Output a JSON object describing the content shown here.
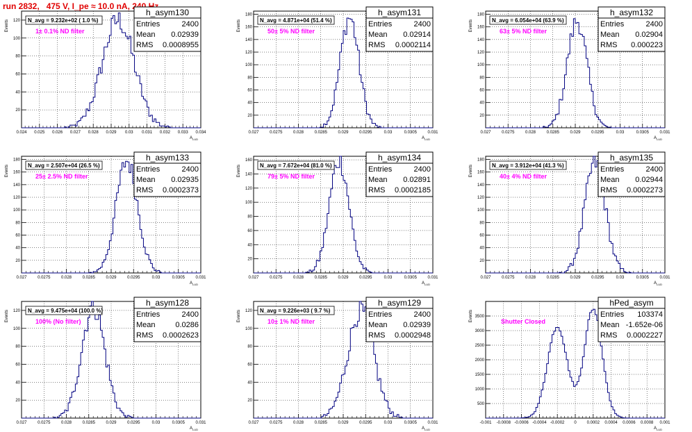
{
  "run_title": "run 2832,   475 V, I_pe ≈ 10.0 nA, 240 Hz",
  "stats_labels": {
    "entries": "Entries",
    "mean": "Mean",
    "rms": "RMS"
  },
  "colors": {
    "histogram": "#000080",
    "filter_text": "#ff00ff",
    "title_text": "#e00000",
    "grid": "#000000"
  },
  "chart_data": [
    {
      "type": "histogram",
      "name": "h_asym130",
      "entries": "2400",
      "mean": "0.02939",
      "rms": "0.0008955",
      "navg": "N_avg = 9.232e+02 ( 1.0 %)",
      "filter": "1± 0.1% ND filter",
      "xlabel": "A_LUD",
      "ylabel": "Events",
      "xlim": [
        0.024,
        0.034
      ],
      "ylim": [
        0,
        130
      ],
      "xticks": [
        0.024,
        0.025,
        0.026,
        0.027,
        0.028,
        0.029,
        0.03,
        0.031,
        0.032,
        0.033,
        0.034
      ],
      "xtick_labels": [
        "0.024",
        "0.025",
        "0.026",
        "0.027",
        "0.028",
        "0.029",
        "0.03",
        "0.031",
        "0.032",
        "0.033",
        "0.034"
      ],
      "yticks": [
        20,
        40,
        60,
        80,
        100,
        120
      ],
      "ytick_labels": [
        "20",
        "40",
        "60",
        "80",
        "100",
        "120"
      ],
      "grid": true,
      "mu": 0.02939,
      "sigma": 0.00089,
      "peak": 120,
      "nbins": 100
    },
    {
      "type": "histogram",
      "name": "h_asym131",
      "entries": "2400",
      "mean": "0.02914",
      "rms": "0.0002114",
      "navg": "N_avg = 4.871e+04 (51.4 %)",
      "filter": "50± 5% ND filter",
      "xlabel": "A_LUD",
      "ylabel": "Events",
      "xlim": [
        0.027,
        0.031
      ],
      "ylim": [
        0,
        185
      ],
      "xticks": [
        0.027,
        0.0275,
        0.028,
        0.0285,
        0.029,
        0.0295,
        0.03,
        0.0305,
        0.031
      ],
      "xtick_labels": [
        "0.027",
        "0.0275",
        "0.028",
        "0.0285",
        "0.029",
        "0.0295",
        "0.03",
        "0.0305",
        "0.031"
      ],
      "yticks": [
        20,
        40,
        60,
        80,
        100,
        120,
        140,
        160,
        180
      ],
      "ytick_labels": [
        "20",
        "40",
        "60",
        "80",
        "100",
        "120",
        "140",
        "160",
        "180"
      ],
      "grid": true,
      "mu": 0.02914,
      "sigma": 0.00021,
      "peak": 175,
      "nbins": 100
    },
    {
      "type": "histogram",
      "name": "h_asym132",
      "entries": "2400",
      "mean": "0.02904",
      "rms": "0.000223",
      "navg": "N_avg = 6.054e+04 (63.9 %)",
      "filter": "63± 5% ND filter",
      "xlabel": "A_LUD",
      "ylabel": "Events",
      "xlim": [
        0.027,
        0.031
      ],
      "ylim": [
        0,
        185
      ],
      "xticks": [
        0.027,
        0.0275,
        0.028,
        0.0285,
        0.029,
        0.0295,
        0.03,
        0.0305,
        0.031
      ],
      "xtick_labels": [
        "0.027",
        "0.0275",
        "0.028",
        "0.0285",
        "0.029",
        "0.0295",
        "0.03",
        "0.0305",
        "0.031"
      ],
      "yticks": [
        20,
        40,
        60,
        80,
        100,
        120,
        140,
        160,
        180
      ],
      "ytick_labels": [
        "20",
        "40",
        "60",
        "80",
        "100",
        "120",
        "140",
        "160",
        "180"
      ],
      "grid": true,
      "mu": 0.02904,
      "sigma": 0.00022,
      "peak": 170,
      "nbins": 100
    },
    {
      "type": "histogram",
      "name": "h_asym133",
      "entries": "2400",
      "mean": "0.02935",
      "rms": "0.0002373",
      "navg": "N_avg = 2.507e+04 (26.5 %)",
      "filter": "25± 2.5% ND filter",
      "xlabel": "A_LUD",
      "ylabel": "Events",
      "xlim": [
        0.027,
        0.031
      ],
      "ylim": [
        0,
        185
      ],
      "xticks": [
        0.027,
        0.0275,
        0.028,
        0.0285,
        0.029,
        0.0295,
        0.03,
        0.0305,
        0.031
      ],
      "xtick_labels": [
        "0.027",
        "0.0275",
        "0.028",
        "0.0285",
        "0.029",
        "0.0295",
        "0.03",
        "0.0305",
        "0.031"
      ],
      "yticks": [
        20,
        40,
        60,
        80,
        100,
        120,
        140,
        160,
        180
      ],
      "ytick_labels": [
        "20",
        "40",
        "60",
        "80",
        "100",
        "120",
        "140",
        "160",
        "180"
      ],
      "grid": true,
      "mu": 0.02935,
      "sigma": 0.00024,
      "peak": 178,
      "nbins": 100
    },
    {
      "type": "histogram",
      "name": "h_asym134",
      "entries": "2400",
      "mean": "0.02891",
      "rms": "0.0002185",
      "navg": "N_avg = 7.672e+04 (81.0 %)",
      "filter": "79± 5% ND filter",
      "xlabel": "A_LUD",
      "ylabel": "Events",
      "xlim": [
        0.027,
        0.031
      ],
      "ylim": [
        0,
        165
      ],
      "xticks": [
        0.027,
        0.0275,
        0.028,
        0.0285,
        0.029,
        0.0295,
        0.03,
        0.0305,
        0.031
      ],
      "xtick_labels": [
        "0.027",
        "0.0275",
        "0.028",
        "0.0285",
        "0.029",
        "0.0295",
        "0.03",
        "0.0305",
        "0.031"
      ],
      "yticks": [
        20,
        40,
        60,
        80,
        100,
        120,
        140,
        160
      ],
      "ytick_labels": [
        "20",
        "40",
        "60",
        "80",
        "100",
        "120",
        "140",
        "160"
      ],
      "grid": true,
      "mu": 0.02891,
      "sigma": 0.00022,
      "peak": 160,
      "nbins": 100
    },
    {
      "type": "histogram",
      "name": "h_asym135",
      "entries": "2400",
      "mean": "0.02944",
      "rms": "0.0002273",
      "navg": "N_avg = 3.912e+04 (41.3 %)",
      "filter": "40± 4% ND filter",
      "xlabel": "A_LUD",
      "ylabel": "Events",
      "xlim": [
        0.027,
        0.031
      ],
      "ylim": [
        0,
        185
      ],
      "xticks": [
        0.027,
        0.0275,
        0.028,
        0.0285,
        0.029,
        0.0295,
        0.03,
        0.0305,
        0.031
      ],
      "xtick_labels": [
        "0.027",
        "0.0275",
        "0.028",
        "0.0285",
        "0.029",
        "0.0295",
        "0.03",
        "0.0305",
        "0.031"
      ],
      "yticks": [
        20,
        40,
        60,
        80,
        100,
        120,
        140,
        160,
        180
      ],
      "ytick_labels": [
        "20",
        "40",
        "60",
        "80",
        "100",
        "120",
        "140",
        "160",
        "180"
      ],
      "grid": true,
      "mu": 0.02944,
      "sigma": 0.00023,
      "peak": 175,
      "nbins": 100
    },
    {
      "type": "histogram",
      "name": "h_asym128",
      "entries": "2400",
      "mean": "0.0286",
      "rms": "0.0002623",
      "navg": "N_avg = 9.475e+04 (100.0 %)",
      "filter": "100% (No filter)",
      "xlabel": "A_LUD",
      "ylabel": "Events",
      "xlim": [
        0.027,
        0.031
      ],
      "ylim": [
        0,
        130
      ],
      "xticks": [
        0.027,
        0.0275,
        0.028,
        0.0285,
        0.029,
        0.0295,
        0.03,
        0.0305,
        0.031
      ],
      "xtick_labels": [
        "0.027",
        "0.0275",
        "0.028",
        "0.0285",
        "0.029",
        "0.0295",
        "0.03",
        "0.0305",
        "0.031"
      ],
      "yticks": [
        20,
        40,
        60,
        80,
        100,
        120
      ],
      "ytick_labels": [
        "20",
        "40",
        "60",
        "80",
        "100",
        "120"
      ],
      "grid": true,
      "mu": 0.0286,
      "sigma": 0.00026,
      "peak": 125,
      "nbins": 100
    },
    {
      "type": "histogram",
      "name": "h_asym129",
      "entries": "2400",
      "mean": "0.02939",
      "rms": "0.0002948",
      "navg": "N_avg = 9.226e+03 ( 9.7 %)",
      "filter": "10± 1% ND filter",
      "xlabel": "A_LUD",
      "ylabel": "Events",
      "xlim": [
        0.027,
        0.031
      ],
      "ylim": [
        0,
        130
      ],
      "xticks": [
        0.027,
        0.0275,
        0.028,
        0.0285,
        0.029,
        0.0295,
        0.03,
        0.0305,
        0.031
      ],
      "xtick_labels": [
        "0.027",
        "0.0275",
        "0.028",
        "0.0285",
        "0.029",
        "0.0295",
        "0.03",
        "0.0305",
        "0.031"
      ],
      "yticks": [
        20,
        40,
        60,
        80,
        100,
        120
      ],
      "ytick_labels": [
        "20",
        "40",
        "60",
        "80",
        "100",
        "120"
      ],
      "grid": true,
      "mu": 0.02939,
      "sigma": 0.00029,
      "peak": 120,
      "nbins": 100
    },
    {
      "type": "histogram",
      "name": "hPed_asym",
      "entries": "103374",
      "mean": "-1.652e-06",
      "rms": "0.0002227",
      "navg": "",
      "filter": "Shutter Closed",
      "xlabel": "A_LUD",
      "ylabel": "Events",
      "xlim": [
        -0.001,
        0.001
      ],
      "ylim": [
        0,
        4000
      ],
      "xticks": [
        -0.001,
        -0.0008,
        -0.0006,
        -0.0004,
        -0.0002,
        0,
        0.0002,
        0.0004,
        0.0006,
        0.0008,
        0.001
      ],
      "xtick_labels": [
        "-0.001",
        "-0.0008",
        "-0.0006",
        "-0.0004",
        "-0.0002",
        "0",
        "0.0002",
        "0.0004",
        "0.0006",
        "0.0008",
        "0.001"
      ],
      "yticks": [
        500,
        1000,
        1500,
        2000,
        2500,
        3000,
        3500
      ],
      "ytick_labels": [
        "500",
        "1000",
        "1500",
        "2000",
        "2500",
        "3000",
        "3500"
      ],
      "grid": true,
      "nbins": 100,
      "components": [
        {
          "mu": -0.0002,
          "sigma": 0.00011,
          "peak": 3150
        },
        {
          "mu": 0.0002,
          "sigma": 0.0001,
          "peak": 3750
        }
      ]
    }
  ]
}
